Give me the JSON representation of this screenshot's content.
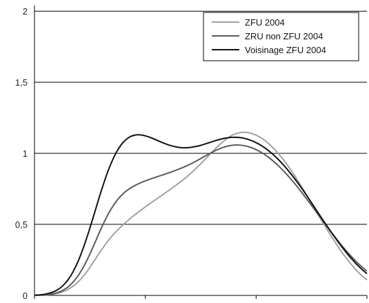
{
  "chart_data": {
    "type": "line",
    "title": "",
    "xlabel": "",
    "ylabel": "",
    "ylim": [
      0,
      2.04
    ],
    "xlim": [
      0,
      3
    ],
    "y_ticks": [
      {
        "value": 0,
        "label": "0"
      },
      {
        "value": 0.5,
        "label": "0,5"
      },
      {
        "value": 1,
        "label": "1"
      },
      {
        "value": 1.5,
        "label": "1,5"
      },
      {
        "value": 2,
        "label": "2"
      }
    ],
    "x_ticks": [
      0,
      1,
      2,
      3
    ],
    "grid": true,
    "legend_position": "top-right",
    "series": [
      {
        "name": "ZFU 2004",
        "color": "#a0a0a0",
        "width": 2,
        "x": [
          0,
          0.05,
          0.1,
          0.15,
          0.2,
          0.25,
          0.3,
          0.35,
          0.4,
          0.45,
          0.5,
          0.55,
          0.6,
          0.65,
          0.7,
          0.75,
          0.8,
          0.85,
          0.9,
          0.95,
          1,
          1.05,
          1.1,
          1.15,
          1.2,
          1.25,
          1.3,
          1.35,
          1.4,
          1.45,
          1.5,
          1.55,
          1.6,
          1.65,
          1.7,
          1.75,
          1.8,
          1.85,
          1.9,
          1.95,
          2,
          2.05,
          2.1,
          2.15,
          2.2,
          2.25,
          2.3,
          2.35,
          2.4,
          2.45,
          2.5,
          2.55,
          2.6,
          2.65,
          2.7,
          2.75,
          2.8,
          2.85,
          2.9,
          2.95,
          3
        ],
        "y": [
          0.001,
          0.001,
          0.003,
          0.006,
          0.013,
          0.024,
          0.041,
          0.066,
          0.1,
          0.144,
          0.197,
          0.256,
          0.315,
          0.37,
          0.418,
          0.46,
          0.498,
          0.532,
          0.564,
          0.594,
          0.623,
          0.651,
          0.678,
          0.705,
          0.732,
          0.76,
          0.789,
          0.819,
          0.852,
          0.888,
          0.926,
          0.966,
          1.007,
          1.046,
          1.081,
          1.111,
          1.133,
          1.145,
          1.148,
          1.142,
          1.128,
          1.106,
          1.077,
          1.041,
          0.999,
          0.951,
          0.898,
          0.84,
          0.778,
          0.714,
          0.648,
          0.582,
          0.516,
          0.452,
          0.39,
          0.331,
          0.276,
          0.226,
          0.181,
          0.142,
          0.109
        ]
      },
      {
        "name": "ZRU non ZFU 2004",
        "color": "#5a5a5a",
        "width": 2,
        "x": [
          0,
          0.05,
          0.1,
          0.15,
          0.2,
          0.25,
          0.3,
          0.35,
          0.4,
          0.45,
          0.5,
          0.55,
          0.6,
          0.65,
          0.7,
          0.75,
          0.8,
          0.85,
          0.9,
          0.95,
          1,
          1.05,
          1.1,
          1.15,
          1.2,
          1.25,
          1.3,
          1.35,
          1.4,
          1.45,
          1.5,
          1.55,
          1.6,
          1.65,
          1.7,
          1.75,
          1.8,
          1.85,
          1.9,
          1.95,
          2,
          2.05,
          2.1,
          2.15,
          2.2,
          2.25,
          2.3,
          2.35,
          2.4,
          2.45,
          2.5,
          2.55,
          2.6,
          2.65,
          2.7,
          2.75,
          2.8,
          2.85,
          2.9,
          2.95,
          3
        ],
        "y": [
          0.001,
          0.002,
          0.004,
          0.009,
          0.018,
          0.033,
          0.058,
          0.095,
          0.146,
          0.212,
          0.291,
          0.379,
          0.468,
          0.55,
          0.619,
          0.674,
          0.716,
          0.747,
          0.771,
          0.79,
          0.806,
          0.82,
          0.833,
          0.846,
          0.859,
          0.873,
          0.888,
          0.904,
          0.922,
          0.942,
          0.963,
          0.985,
          1.006,
          1.025,
          1.041,
          1.052,
          1.058,
          1.058,
          1.053,
          1.042,
          1.026,
          1.005,
          0.979,
          0.948,
          0.913,
          0.874,
          0.831,
          0.785,
          0.736,
          0.685,
          0.633,
          0.58,
          0.527,
          0.474,
          0.423,
          0.373,
          0.326,
          0.282,
          0.241,
          0.204,
          0.171
        ]
      },
      {
        "name": "Voisinage ZFU 2004",
        "color": "#111111",
        "width": 2,
        "x": [
          0,
          0.05,
          0.1,
          0.15,
          0.2,
          0.25,
          0.3,
          0.35,
          0.4,
          0.45,
          0.5,
          0.55,
          0.6,
          0.65,
          0.7,
          0.75,
          0.8,
          0.85,
          0.9,
          0.95,
          1,
          1.05,
          1.1,
          1.15,
          1.2,
          1.25,
          1.3,
          1.35,
          1.4,
          1.45,
          1.5,
          1.55,
          1.6,
          1.65,
          1.7,
          1.75,
          1.8,
          1.85,
          1.9,
          1.95,
          2,
          2.05,
          2.1,
          2.15,
          2.2,
          2.25,
          2.3,
          2.35,
          2.4,
          2.45,
          2.5,
          2.55,
          2.6,
          2.65,
          2.7,
          2.75,
          2.8,
          2.85,
          2.9,
          2.95,
          3
        ],
        "y": [
          0.002,
          0.004,
          0.009,
          0.019,
          0.036,
          0.064,
          0.107,
          0.169,
          0.252,
          0.355,
          0.474,
          0.602,
          0.729,
          0.846,
          0.945,
          1.022,
          1.077,
          1.111,
          1.127,
          1.13,
          1.123,
          1.11,
          1.094,
          1.077,
          1.062,
          1.05,
          1.042,
          1.039,
          1.041,
          1.047,
          1.056,
          1.068,
          1.081,
          1.093,
          1.103,
          1.11,
          1.113,
          1.111,
          1.104,
          1.092,
          1.075,
          1.053,
          1.026,
          0.994,
          0.957,
          0.915,
          0.869,
          0.819,
          0.766,
          0.71,
          0.652,
          0.593,
          0.534,
          0.476,
          0.42,
          0.366,
          0.315,
          0.268,
          0.225,
          0.187,
          0.153
        ]
      }
    ]
  }
}
